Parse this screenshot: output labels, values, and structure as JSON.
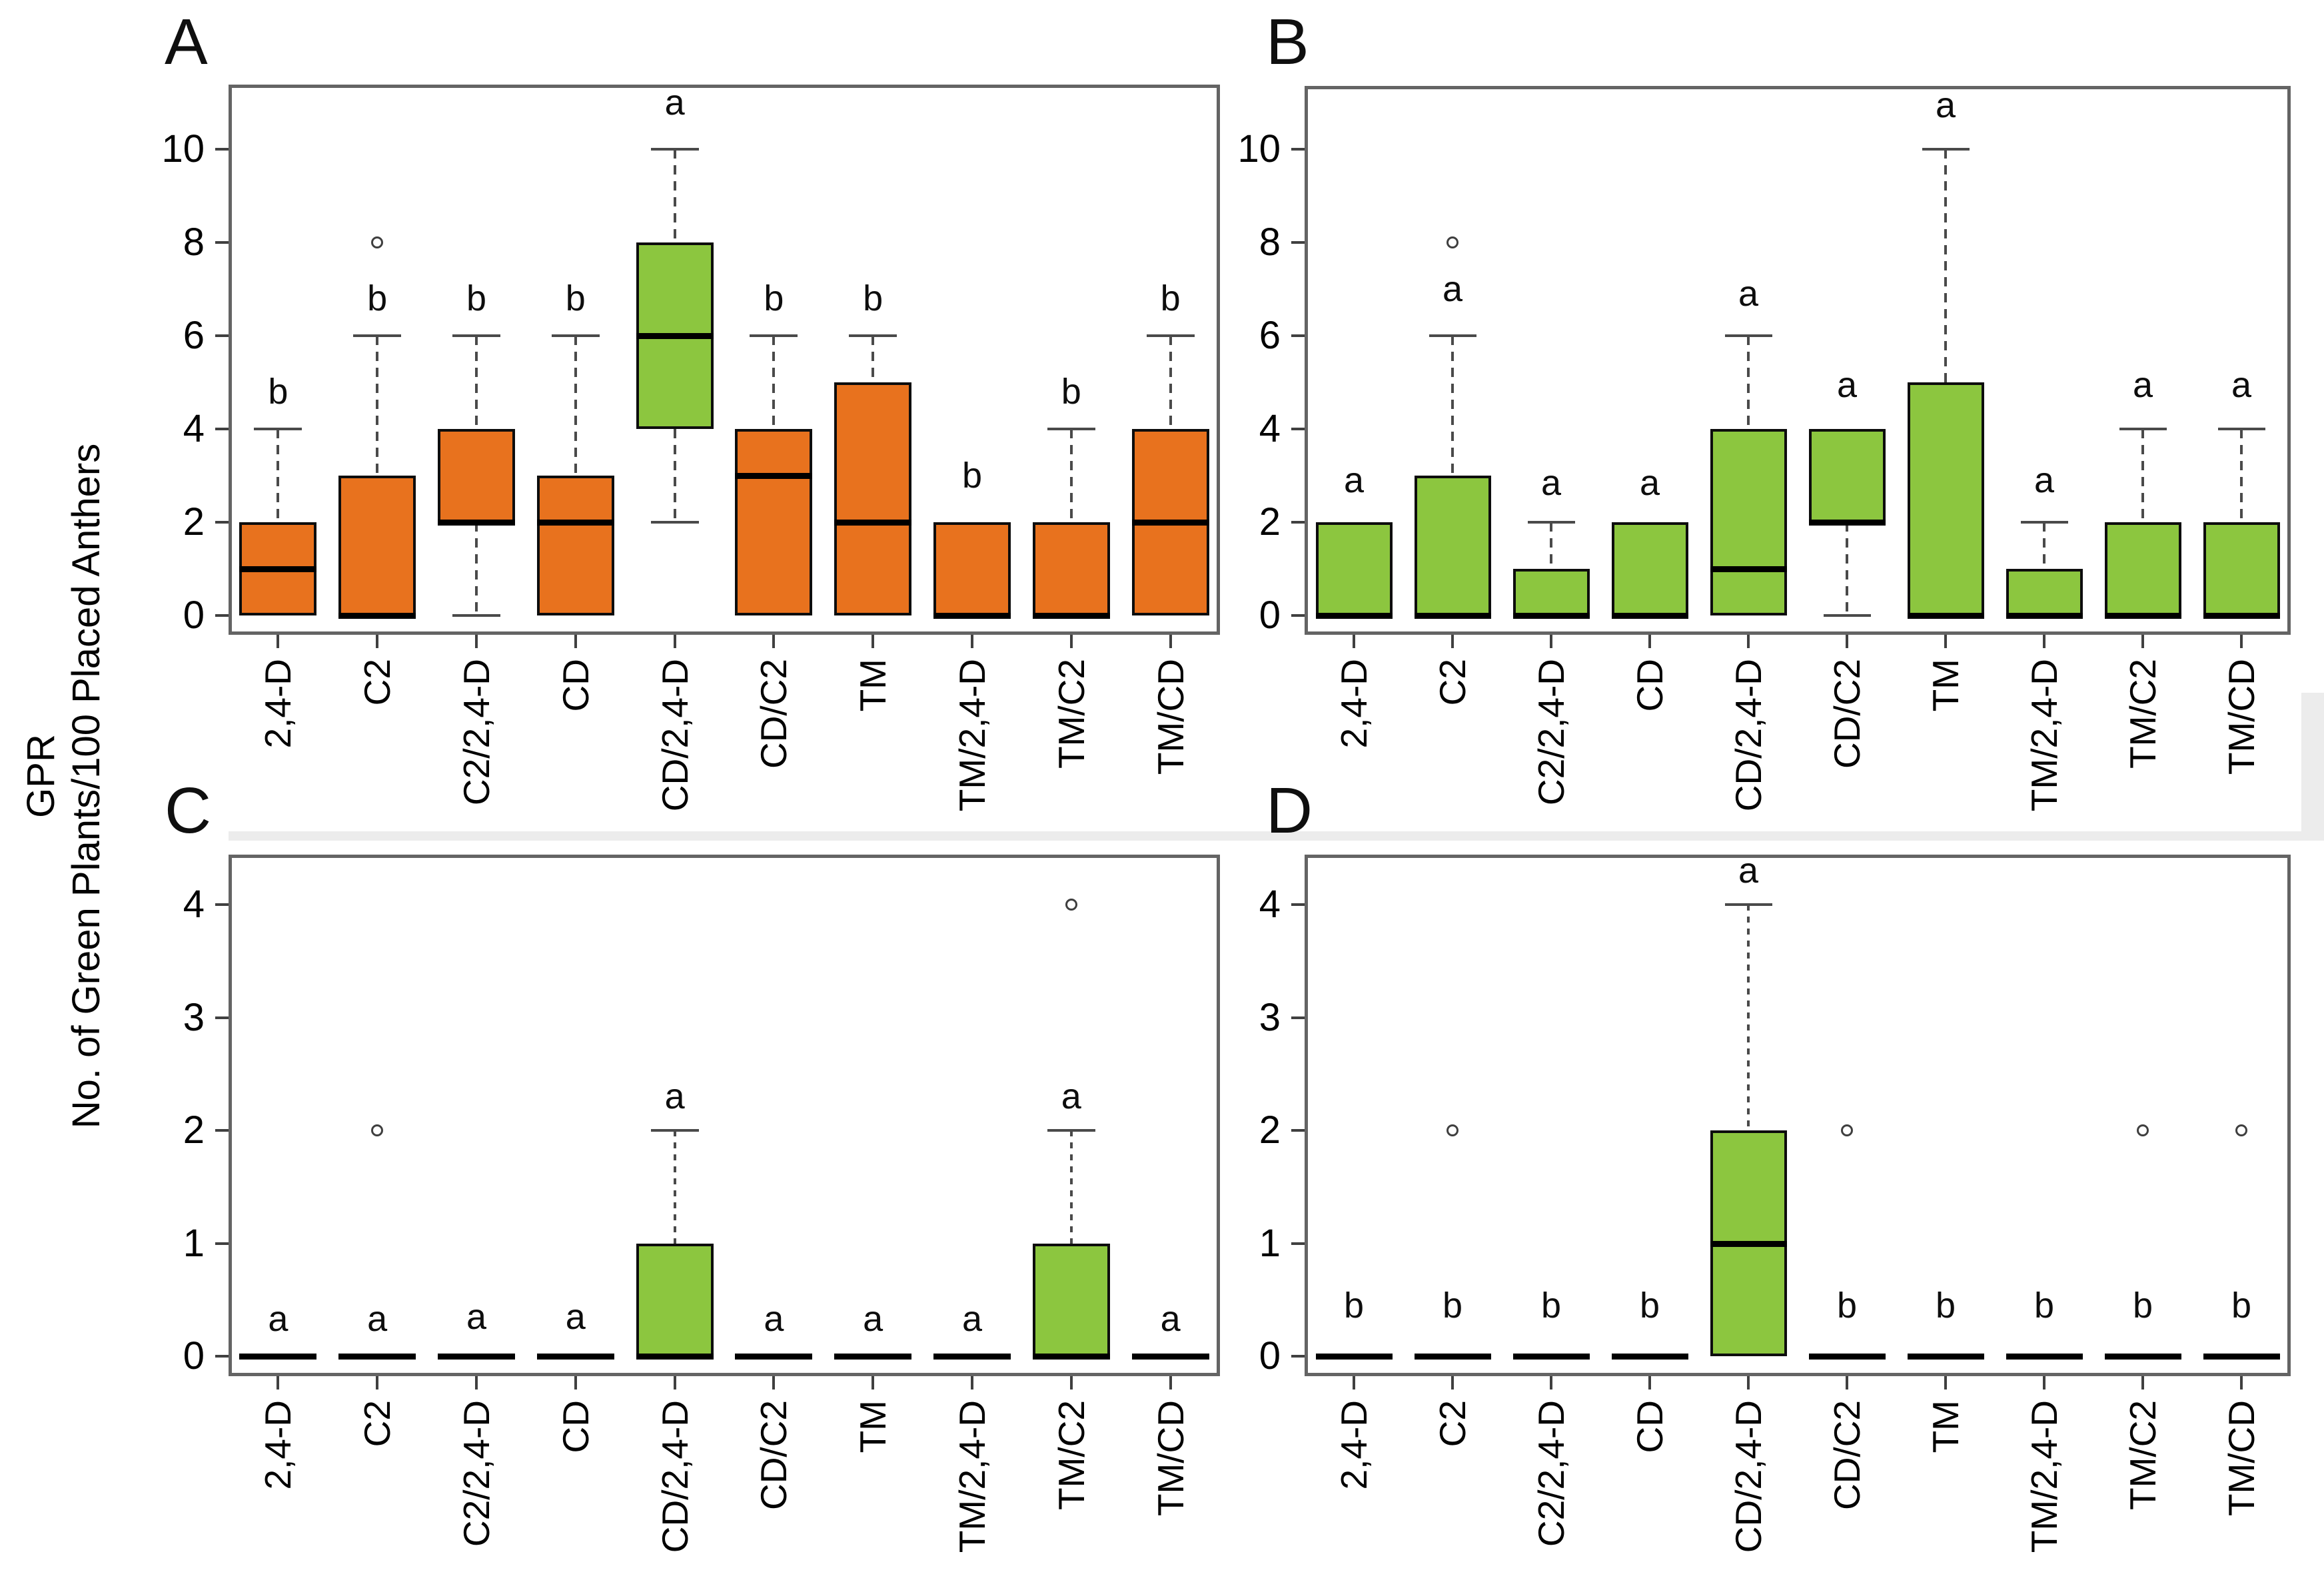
{
  "figure": {
    "ylabel_line1": "GPR",
    "ylabel_line2": "No. of Green Plants/100 Placed Anthers",
    "colors": {
      "orange": "#E8721E",
      "green": "#8CC63F",
      "box_border": "#0d0d0d",
      "median": "#000000",
      "whisker": "#4a4a4a",
      "axis_border": "#646464",
      "tick": "#404040",
      "text": "#111111",
      "background": "#ffffff"
    }
  },
  "categories": [
    "2,4-D",
    "C2",
    "C2/2,4-D",
    "CD",
    "CD/2,4-D",
    "CD/C2",
    "TM",
    "TM/2,4-D",
    "TM/C2",
    "TM/CD"
  ],
  "chart_data": [
    {
      "id": "A",
      "label": "A",
      "type": "box",
      "ylim": [
        -0.41,
        11.39
      ],
      "yticks": [
        0,
        2,
        4,
        6,
        8,
        10
      ],
      "legend": "none",
      "grid": false,
      "boxes": [
        {
          "category": "2,4-D",
          "q1": 0,
          "median": 1,
          "q3": 2,
          "whisker_low": null,
          "whisker_high": 4,
          "outliers": [],
          "color": "orange",
          "letter": "b",
          "letter_y": 4.8
        },
        {
          "category": "C2",
          "q1": 0,
          "median": 0,
          "q3": 3,
          "whisker_low": null,
          "whisker_high": 6,
          "outliers": [
            8
          ],
          "color": "orange",
          "letter": "b",
          "letter_y": 6.8
        },
        {
          "category": "C2/2,4-D",
          "q1": 2,
          "median": 2,
          "q3": 4,
          "whisker_low": 0,
          "whisker_high": 6,
          "outliers": [],
          "color": "orange",
          "letter": "b",
          "letter_y": 6.8
        },
        {
          "category": "CD",
          "q1": 0,
          "median": 2,
          "q3": 3,
          "whisker_low": null,
          "whisker_high": 6,
          "outliers": [],
          "color": "orange",
          "letter": "b",
          "letter_y": 6.8
        },
        {
          "category": "CD/2,4-D",
          "q1": 4,
          "median": 6,
          "q3": 8,
          "whisker_low": 2,
          "whisker_high": 10,
          "outliers": [],
          "color": "green",
          "letter": "a",
          "letter_y": 11.0
        },
        {
          "category": "CD/C2",
          "q1": 0,
          "median": 3,
          "q3": 4,
          "whisker_low": null,
          "whisker_high": 6,
          "outliers": [],
          "color": "orange",
          "letter": "b",
          "letter_y": 6.8
        },
        {
          "category": "TM",
          "q1": 0,
          "median": 2,
          "q3": 5,
          "whisker_low": null,
          "whisker_high": 6,
          "outliers": [],
          "color": "orange",
          "letter": "b",
          "letter_y": 6.8
        },
        {
          "category": "TM/2,4-D",
          "q1": 0,
          "median": 0,
          "q3": 2,
          "whisker_low": null,
          "whisker_high": null,
          "outliers": [],
          "color": "orange",
          "letter": "b",
          "letter_y": 3.0
        },
        {
          "category": "TM/C2",
          "q1": 0,
          "median": 0,
          "q3": 2,
          "whisker_low": null,
          "whisker_high": 4,
          "outliers": [],
          "color": "orange",
          "letter": "b",
          "letter_y": 4.8
        },
        {
          "category": "TM/CD",
          "q1": 0,
          "median": 2,
          "q3": 4,
          "whisker_low": null,
          "whisker_high": 6,
          "outliers": [],
          "color": "orange",
          "letter": "b",
          "letter_y": 6.8
        }
      ]
    },
    {
      "id": "B",
      "label": "B",
      "type": "box",
      "ylim": [
        -0.41,
        11.36
      ],
      "yticks": [
        0,
        2,
        4,
        6,
        8,
        10
      ],
      "legend": "none",
      "grid": false,
      "boxes": [
        {
          "category": "2,4-D",
          "q1": 0,
          "median": 0,
          "q3": 2,
          "whisker_low": null,
          "whisker_high": null,
          "outliers": [],
          "color": "green",
          "letter": "a",
          "letter_y": 2.9
        },
        {
          "category": "C2",
          "q1": 0,
          "median": 0,
          "q3": 3,
          "whisker_low": null,
          "whisker_high": 6,
          "outliers": [
            8
          ],
          "color": "green",
          "letter": "a",
          "letter_y": 7.0
        },
        {
          "category": "C2/2,4-D",
          "q1": 0,
          "median": 0,
          "q3": 1,
          "whisker_low": null,
          "whisker_high": 2,
          "outliers": [],
          "color": "green",
          "letter": "a",
          "letter_y": 2.85
        },
        {
          "category": "CD",
          "q1": 0,
          "median": 0,
          "q3": 2,
          "whisker_low": null,
          "whisker_high": null,
          "outliers": [],
          "color": "green",
          "letter": "a",
          "letter_y": 2.85
        },
        {
          "category": "CD/2,4-D",
          "q1": 0,
          "median": 1,
          "q3": 4,
          "whisker_low": null,
          "whisker_high": 6,
          "outliers": [],
          "color": "green",
          "letter": "a",
          "letter_y": 6.9
        },
        {
          "category": "CD/C2",
          "q1": 2,
          "median": 2,
          "q3": 4,
          "whisker_low": 0,
          "whisker_high": null,
          "outliers": [],
          "color": "green",
          "letter": "a",
          "letter_y": 4.95
        },
        {
          "category": "TM",
          "q1": 0,
          "median": 0,
          "q3": 5,
          "whisker_low": null,
          "whisker_high": 10,
          "outliers": [],
          "color": "green",
          "letter": "a",
          "letter_y": 10.95
        },
        {
          "category": "TM/2,4-D",
          "q1": 0,
          "median": 0,
          "q3": 1,
          "whisker_low": null,
          "whisker_high": 2,
          "outliers": [],
          "color": "green",
          "letter": "a",
          "letter_y": 2.9
        },
        {
          "category": "TM/C2",
          "q1": 0,
          "median": 0,
          "q3": 2,
          "whisker_low": null,
          "whisker_high": 4,
          "outliers": [],
          "color": "green",
          "letter": "a",
          "letter_y": 4.95
        },
        {
          "category": "TM/CD",
          "q1": 0,
          "median": 0,
          "q3": 2,
          "whisker_low": null,
          "whisker_high": 4,
          "outliers": [],
          "color": "green",
          "letter": "a",
          "letter_y": 4.95
        }
      ]
    },
    {
      "id": "C",
      "label": "C",
      "type": "box",
      "ylim": [
        -0.18,
        4.44
      ],
      "yticks": [
        0,
        1,
        2,
        3,
        4
      ],
      "legend": "none",
      "grid": false,
      "boxes": [
        {
          "category": "2,4-D",
          "q1": 0,
          "median": 0,
          "q3": 0,
          "whisker_low": null,
          "whisker_high": null,
          "outliers": [],
          "color": "green",
          "letter": "a",
          "letter_y": 0.33
        },
        {
          "category": "C2",
          "q1": 0,
          "median": 0,
          "q3": 0,
          "whisker_low": null,
          "whisker_high": null,
          "outliers": [
            2
          ],
          "color": "green",
          "letter": "a",
          "letter_y": 0.33
        },
        {
          "category": "C2/2,4-D",
          "q1": 0,
          "median": 0,
          "q3": 0,
          "whisker_low": null,
          "whisker_high": null,
          "outliers": [],
          "color": "green",
          "letter": "a",
          "letter_y": 0.35
        },
        {
          "category": "CD",
          "q1": 0,
          "median": 0,
          "q3": 0,
          "whisker_low": null,
          "whisker_high": null,
          "outliers": [],
          "color": "green",
          "letter": "a",
          "letter_y": 0.35
        },
        {
          "category": "CD/2,4-D",
          "q1": 0,
          "median": 0,
          "q3": 1,
          "whisker_low": null,
          "whisker_high": 2,
          "outliers": [],
          "color": "green",
          "letter": "a",
          "letter_y": 2.3
        },
        {
          "category": "CD/C2",
          "q1": 0,
          "median": 0,
          "q3": 0,
          "whisker_low": null,
          "whisker_high": null,
          "outliers": [],
          "color": "green",
          "letter": "a",
          "letter_y": 0.33
        },
        {
          "category": "TM",
          "q1": 0,
          "median": 0,
          "q3": 0,
          "whisker_low": null,
          "whisker_high": null,
          "outliers": [],
          "color": "green",
          "letter": "a",
          "letter_y": 0.33
        },
        {
          "category": "TM/2,4-D",
          "q1": 0,
          "median": 0,
          "q3": 0,
          "whisker_low": null,
          "whisker_high": null,
          "outliers": [],
          "color": "green",
          "letter": "a",
          "letter_y": 0.33
        },
        {
          "category": "TM/C2",
          "q1": 0,
          "median": 0,
          "q3": 1,
          "whisker_low": null,
          "whisker_high": 2,
          "outliers": [
            4
          ],
          "color": "green",
          "letter": "a",
          "letter_y": 2.3
        },
        {
          "category": "TM/CD",
          "q1": 0,
          "median": 0,
          "q3": 0,
          "whisker_low": null,
          "whisker_high": null,
          "outliers": [],
          "color": "green",
          "letter": "a",
          "letter_y": 0.33
        }
      ]
    },
    {
      "id": "D",
      "label": "D",
      "type": "box",
      "ylim": [
        -0.18,
        4.44
      ],
      "yticks": [
        0,
        1,
        2,
        3,
        4
      ],
      "legend": "none",
      "grid": false,
      "boxes": [
        {
          "category": "2,4-D",
          "q1": 0,
          "median": 0,
          "q3": 0,
          "whisker_low": null,
          "whisker_high": null,
          "outliers": [],
          "color": "green",
          "letter": "b",
          "letter_y": 0.45
        },
        {
          "category": "C2",
          "q1": 0,
          "median": 0,
          "q3": 0,
          "whisker_low": null,
          "whisker_high": null,
          "outliers": [
            2
          ],
          "color": "green",
          "letter": "b",
          "letter_y": 0.45
        },
        {
          "category": "C2/2,4-D",
          "q1": 0,
          "median": 0,
          "q3": 0,
          "whisker_low": null,
          "whisker_high": null,
          "outliers": [],
          "color": "green",
          "letter": "b",
          "letter_y": 0.45
        },
        {
          "category": "CD",
          "q1": 0,
          "median": 0,
          "q3": 0,
          "whisker_low": null,
          "whisker_high": null,
          "outliers": [],
          "color": "green",
          "letter": "b",
          "letter_y": 0.45
        },
        {
          "category": "CD/2,4-D",
          "q1": 0,
          "median": 1,
          "q3": 2,
          "whisker_low": null,
          "whisker_high": 4,
          "outliers": [],
          "color": "green",
          "letter": "a",
          "letter_y": 4.3
        },
        {
          "category": "CD/C2",
          "q1": 0,
          "median": 0,
          "q3": 0,
          "whisker_low": null,
          "whisker_high": null,
          "outliers": [
            2
          ],
          "color": "green",
          "letter": "b",
          "letter_y": 0.45
        },
        {
          "category": "TM",
          "q1": 0,
          "median": 0,
          "q3": 0,
          "whisker_low": null,
          "whisker_high": null,
          "outliers": [],
          "color": "green",
          "letter": "b",
          "letter_y": 0.45
        },
        {
          "category": "TM/2,4-D",
          "q1": 0,
          "median": 0,
          "q3": 0,
          "whisker_low": null,
          "whisker_high": null,
          "outliers": [],
          "color": "green",
          "letter": "b",
          "letter_y": 0.45
        },
        {
          "category": "TM/C2",
          "q1": 0,
          "median": 0,
          "q3": 0,
          "whisker_low": null,
          "whisker_high": null,
          "outliers": [
            2
          ],
          "color": "green",
          "letter": "b",
          "letter_y": 0.45
        },
        {
          "category": "TM/CD",
          "q1": 0,
          "median": 0,
          "q3": 0,
          "whisker_low": null,
          "whisker_high": null,
          "outliers": [
            2
          ],
          "color": "green",
          "letter": "b",
          "letter_y": 0.45
        }
      ]
    }
  ]
}
